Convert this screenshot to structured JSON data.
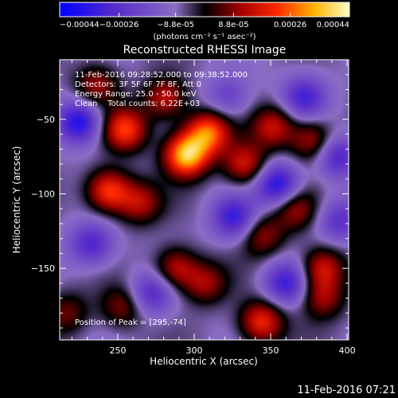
{
  "chart_data": {
    "type": "heatmap",
    "title": "Reconstructed RHESSI Image",
    "xlabel": "Heliocentric X (arcsec)",
    "ylabel": "Heliocentric Y (arcsec)",
    "xlim": [
      212,
      401
    ],
    "ylim": [
      -198,
      -10
    ],
    "x_ticks": [
      250,
      300,
      350,
      400
    ],
    "y_ticks": [
      -50,
      -100,
      -150
    ],
    "colorbar": {
      "label": "(photons cm⁻² s⁻¹ asec⁻²)",
      "range": [
        -0.00044,
        0.00044
      ],
      "tick_labels": [
        "-0.00044",
        "-0.00026",
        "-8.8e-05",
        "8.8e-05",
        "0.00026",
        "0.00044"
      ],
      "tick_values": [
        -0.00044,
        -0.00026,
        -8.8e-05,
        8.8e-05,
        0.00026,
        0.00044
      ]
    },
    "annotations": [
      "11-Feb-2016 09:28:52.000 to 09:38:52.000",
      "Detectors: 3F 5F 6F 7F 8F, Att 0",
      "Energy Range: 25.0 - 50.0 keV",
      "Clean    Total counts: 6.22E+03"
    ],
    "peak_label": "Position of Peak = [295,-74]",
    "peak": [
      295,
      -74
    ],
    "sources": [
      {
        "x": 295,
        "y": -74,
        "value": 0.00044
      },
      {
        "x": 309,
        "y": -59,
        "value": 0.00034
      },
      {
        "x": 255,
        "y": -57,
        "value": 0.0003
      },
      {
        "x": 281,
        "y": -36,
        "value": 0.00022
      },
      {
        "x": 244,
        "y": -98,
        "value": 0.00031
      },
      {
        "x": 264,
        "y": -106,
        "value": 0.0002
      },
      {
        "x": 333,
        "y": -80,
        "value": 0.00024
      },
      {
        "x": 352,
        "y": -55,
        "value": 0.00022
      },
      {
        "x": 377,
        "y": -64,
        "value": 0.0002
      },
      {
        "x": 236,
        "y": -27,
        "value": 0.00018
      },
      {
        "x": 366,
        "y": -110,
        "value": 0.00018
      },
      {
        "x": 345,
        "y": -128,
        "value": 0.00017
      },
      {
        "x": 384,
        "y": -150,
        "value": 0.00024
      },
      {
        "x": 384,
        "y": -170,
        "value": 0.00018
      },
      {
        "x": 288,
        "y": -150,
        "value": 0.00022
      },
      {
        "x": 307,
        "y": -160,
        "value": 0.00018
      },
      {
        "x": 253,
        "y": -176,
        "value": 0.00016
      },
      {
        "x": 344,
        "y": -186,
        "value": 0.00028
      },
      {
        "x": 217,
        "y": -180,
        "value": 0.00014
      },
      {
        "x": 233,
        "y": -134,
        "value": -0.00022
      },
      {
        "x": 225,
        "y": -52,
        "value": -0.0003
      },
      {
        "x": 372,
        "y": -35,
        "value": -0.00022
      },
      {
        "x": 355,
        "y": -94,
        "value": -0.0003
      },
      {
        "x": 394,
        "y": -75,
        "value": -0.00022
      },
      {
        "x": 326,
        "y": -116,
        "value": -0.00024
      },
      {
        "x": 272,
        "y": -167,
        "value": -0.0002
      },
      {
        "x": 360,
        "y": -160,
        "value": -0.00024
      },
      {
        "x": 395,
        "y": -118,
        "value": -0.00018
      },
      {
        "x": 322,
        "y": -35,
        "value": -0.00014
      }
    ]
  },
  "footer_timestamp": "11-Feb-2016 07:21"
}
